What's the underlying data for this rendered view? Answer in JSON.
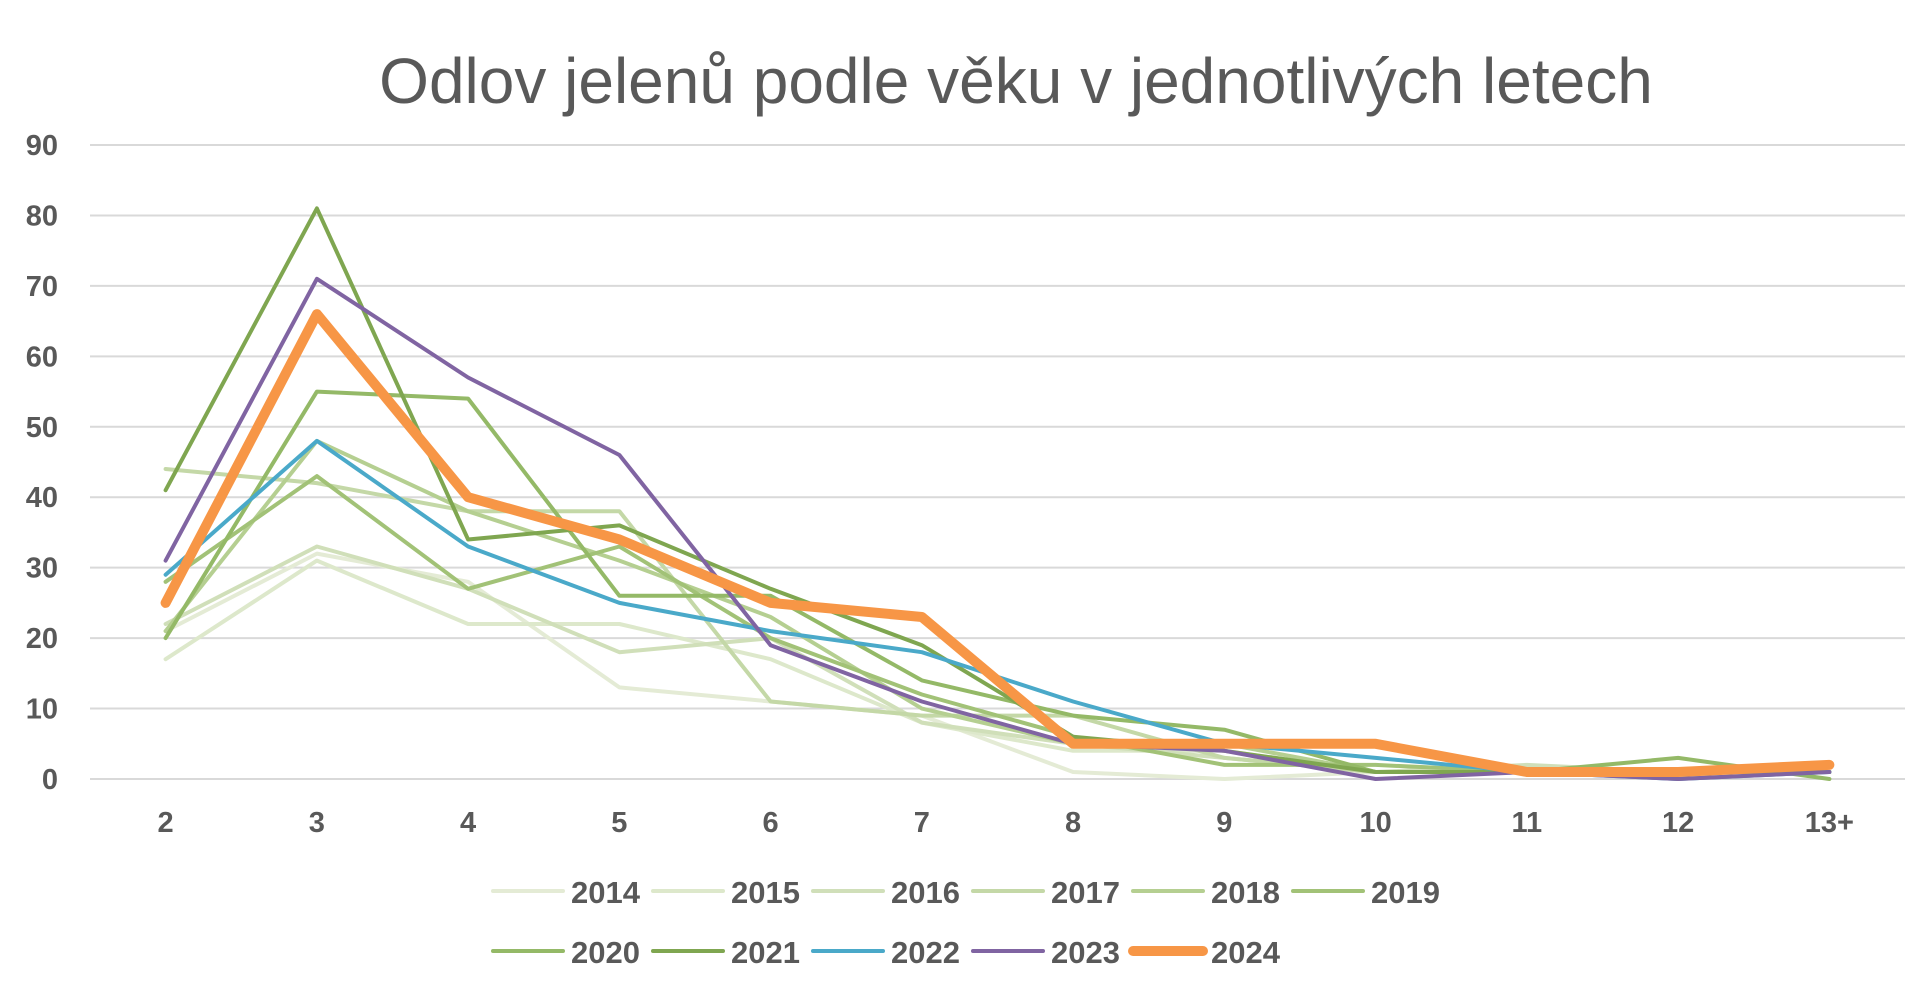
{
  "chart_data": {
    "type": "line",
    "title": "Odlov jelenů podle věku v jednotlivých letech",
    "categories": [
      "2",
      "3",
      "4",
      "5",
      "6",
      "7",
      "8",
      "9",
      "10",
      "11",
      "12",
      "13+"
    ],
    "ylim": [
      0,
      90
    ],
    "yticks": [
      "0",
      "10",
      "20",
      "30",
      "40",
      "50",
      "60",
      "70",
      "80",
      "90"
    ],
    "grid": true,
    "legend_position": "bottom",
    "series": [
      {
        "name": "2014",
        "color": "#e4ebd5",
        "values": [
          21,
          32,
          28,
          13,
          11,
          9,
          1,
          0,
          1,
          1,
          1,
          1
        ]
      },
      {
        "name": "2015",
        "color": "#dde8cb",
        "values": [
          17,
          31,
          22,
          22,
          17,
          8,
          4,
          4,
          1,
          1,
          1,
          1
        ]
      },
      {
        "name": "2016",
        "color": "#d0dfb9",
        "values": [
          22,
          33,
          27,
          18,
          20,
          8,
          5,
          3,
          1,
          2,
          1,
          1
        ]
      },
      {
        "name": "2017",
        "color": "#c4d8a7",
        "values": [
          44,
          42,
          38,
          38,
          11,
          9,
          9,
          3,
          1,
          1,
          1,
          1
        ]
      },
      {
        "name": "2018",
        "color": "#b5cf91",
        "values": [
          21,
          48,
          38,
          31,
          23,
          10,
          5,
          5,
          1,
          1,
          1,
          1
        ]
      },
      {
        "name": "2019",
        "color": "#a2c277",
        "values": [
          28,
          43,
          27,
          33,
          20,
          12,
          6,
          2,
          2,
          1,
          1,
          1
        ]
      },
      {
        "name": "2020",
        "color": "#94b967",
        "values": [
          20,
          55,
          54,
          26,
          26,
          14,
          9,
          7,
          1,
          1,
          3,
          0
        ]
      },
      {
        "name": "2021",
        "color": "#7fa650",
        "values": [
          41,
          81,
          34,
          36,
          27,
          19,
          6,
          4,
          1,
          1,
          1,
          1
        ]
      },
      {
        "name": "2022",
        "color": "#4aa9c9",
        "values": [
          29,
          48,
          33,
          25,
          21,
          18,
          11,
          5,
          3,
          1,
          0,
          1
        ]
      },
      {
        "name": "2023",
        "color": "#8064a2",
        "values": [
          31,
          71,
          57,
          46,
          19,
          11,
          5,
          4,
          0,
          1,
          0,
          1
        ]
      },
      {
        "name": "2024",
        "color": "#f79646",
        "values": [
          25,
          66,
          40,
          34,
          25,
          23,
          5,
          5,
          5,
          1,
          1,
          2
        ]
      }
    ]
  }
}
